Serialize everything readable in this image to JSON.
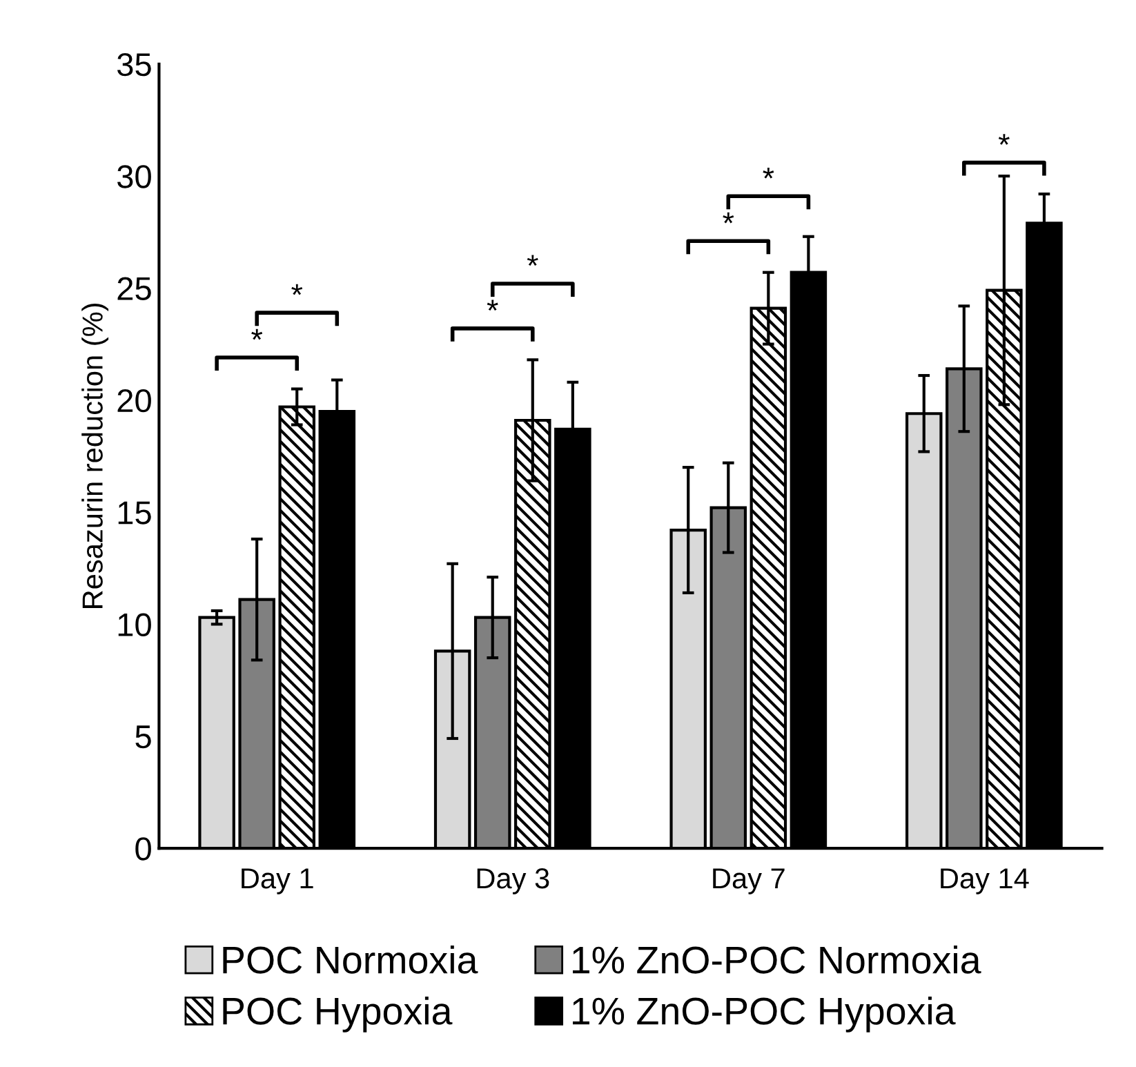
{
  "chart_data": {
    "type": "bar",
    "ylabel": "Resazurin reduction (%)",
    "categories": [
      "Day 1",
      "Day 3",
      "Day 7",
      "Day 14"
    ],
    "series": [
      {
        "name": "POC Normoxia",
        "color": "#d9d9d9",
        "values": [
          10.3,
          8.8,
          14.2,
          19.4
        ],
        "errors": [
          0.3,
          3.9,
          2.8,
          1.7
        ]
      },
      {
        "name": "1% ZnO-POC Normoxia",
        "color": "#808080",
        "values": [
          11.1,
          10.3,
          15.2,
          21.4
        ],
        "errors": [
          2.7,
          1.8,
          2.0,
          2.8
        ]
      },
      {
        "name": "POC Hypoxia",
        "color": "#000000",
        "values": [
          19.7,
          19.1,
          24.1,
          24.9
        ],
        "errors": [
          0.8,
          2.7,
          1.6,
          5.1
        ]
      },
      {
        "name": "1% ZnO-POC Hypoxia",
        "color": "#000000",
        "values": [
          19.5,
          18.7,
          25.7,
          27.9
        ],
        "errors": [
          1.4,
          2.1,
          1.6,
          1.3
        ]
      }
    ],
    "ylim": [
      0,
      35
    ],
    "yticks": [
      0,
      5,
      10,
      15,
      20,
      25,
      30,
      35
    ],
    "grid": false,
    "legend": "bottom",
    "annotations": [
      "*",
      "*",
      "*",
      "*",
      "*",
      "*",
      "*"
    ]
  }
}
